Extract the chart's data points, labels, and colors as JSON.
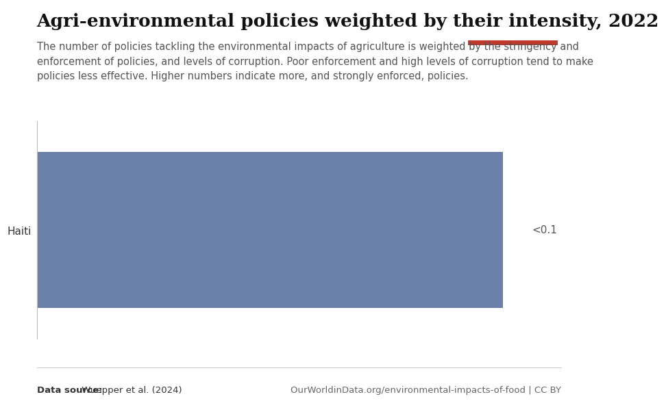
{
  "title": "Agri-environmental policies weighted by their intensity, 2022",
  "subtitle": "The number of policies tackling the environmental impacts of agriculture is weighted by the stringency and\nenforcement of policies, and levels of corruption. Poor enforcement and high levels of corruption tend to make\npolicies less effective. Higher numbers indicate more, and strongly enforced, policies.",
  "country": "Haiti",
  "value_label": "<0.1",
  "bar_color": "#6b80a8",
  "bar_value": 0.09,
  "xlim": [
    0,
    0.095
  ],
  "data_source_bold": "Data source:",
  "data_source_normal": " Wuepper et al. (2024)",
  "footer_right": "OurWorldinData.org/environmental-impacts-of-food | CC BY",
  "owid_box_color": "#1a3a5c",
  "owid_red_color": "#c0392b",
  "background_color": "#ffffff",
  "title_fontsize": 19,
  "subtitle_fontsize": 10.5,
  "label_fontsize": 11,
  "footer_fontsize": 9.5
}
